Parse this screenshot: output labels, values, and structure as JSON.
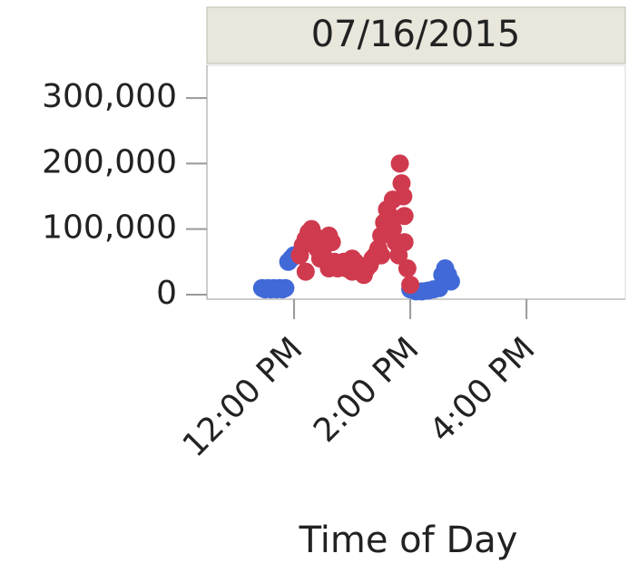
{
  "chart_data": {
    "type": "scatter",
    "header": "07/16/2015",
    "x_label": "Time of Day",
    "xlim": [
      10.5,
      17.7
    ],
    "ylim": [
      -7000,
      350000
    ],
    "xticks": [
      {
        "value": 12,
        "label": "12:00 PM"
      },
      {
        "value": 14,
        "label": "2:00 PM"
      },
      {
        "value": 16,
        "label": "4:00 PM"
      }
    ],
    "yticks": [
      0,
      {
        "value": 100000,
        "label": "100,000"
      },
      {
        "value": 200000,
        "label": "200,000"
      },
      {
        "value": 300000,
        "label": "300,000"
      }
    ],
    "series": [
      {
        "color": "#4169d8",
        "x": [
          11.45,
          11.5,
          11.55,
          11.6,
          11.65,
          11.7,
          11.75,
          11.8,
          11.85,
          11.9,
          11.95,
          12.0,
          14.0,
          14.1,
          14.2,
          14.3,
          14.4,
          14.5,
          14.55,
          14.6,
          14.65,
          14.7
        ],
        "values": [
          10000,
          8000,
          10000,
          8000,
          10000,
          8000,
          10000,
          8000,
          10000,
          50000,
          55000,
          60000,
          8000,
          5000,
          5000,
          6000,
          8000,
          10000,
          30000,
          40000,
          30000,
          20000
        ]
      },
      {
        "color": "#d03a4e",
        "x": [
          12.1,
          12.15,
          12.2,
          12.2,
          12.25,
          12.3,
          12.35,
          12.4,
          12.45,
          12.5,
          12.55,
          12.6,
          12.6,
          12.65,
          12.7,
          12.75,
          12.8,
          12.85,
          12.9,
          12.95,
          13.0,
          13.0,
          13.05,
          13.1,
          13.15,
          13.2,
          13.25,
          13.3,
          13.35,
          13.4,
          13.45,
          13.5,
          13.5,
          13.55,
          13.6,
          13.65,
          13.7,
          13.7,
          13.75,
          13.8,
          13.82,
          13.85,
          13.88,
          13.9,
          13.9,
          13.95,
          14.0
        ],
        "values": [
          60000,
          75000,
          85000,
          35000,
          95000,
          100000,
          90000,
          70000,
          55000,
          60000,
          85000,
          90000,
          40000,
          80000,
          50000,
          40000,
          45000,
          50000,
          40000,
          45000,
          55000,
          35000,
          50000,
          45000,
          35000,
          30000,
          40000,
          45000,
          55000,
          60000,
          70000,
          90000,
          60000,
          110000,
          130000,
          120000,
          100000,
          145000,
          80000,
          60000,
          200000,
          170000,
          150000,
          120000,
          80000,
          40000,
          15000
        ]
      }
    ]
  }
}
